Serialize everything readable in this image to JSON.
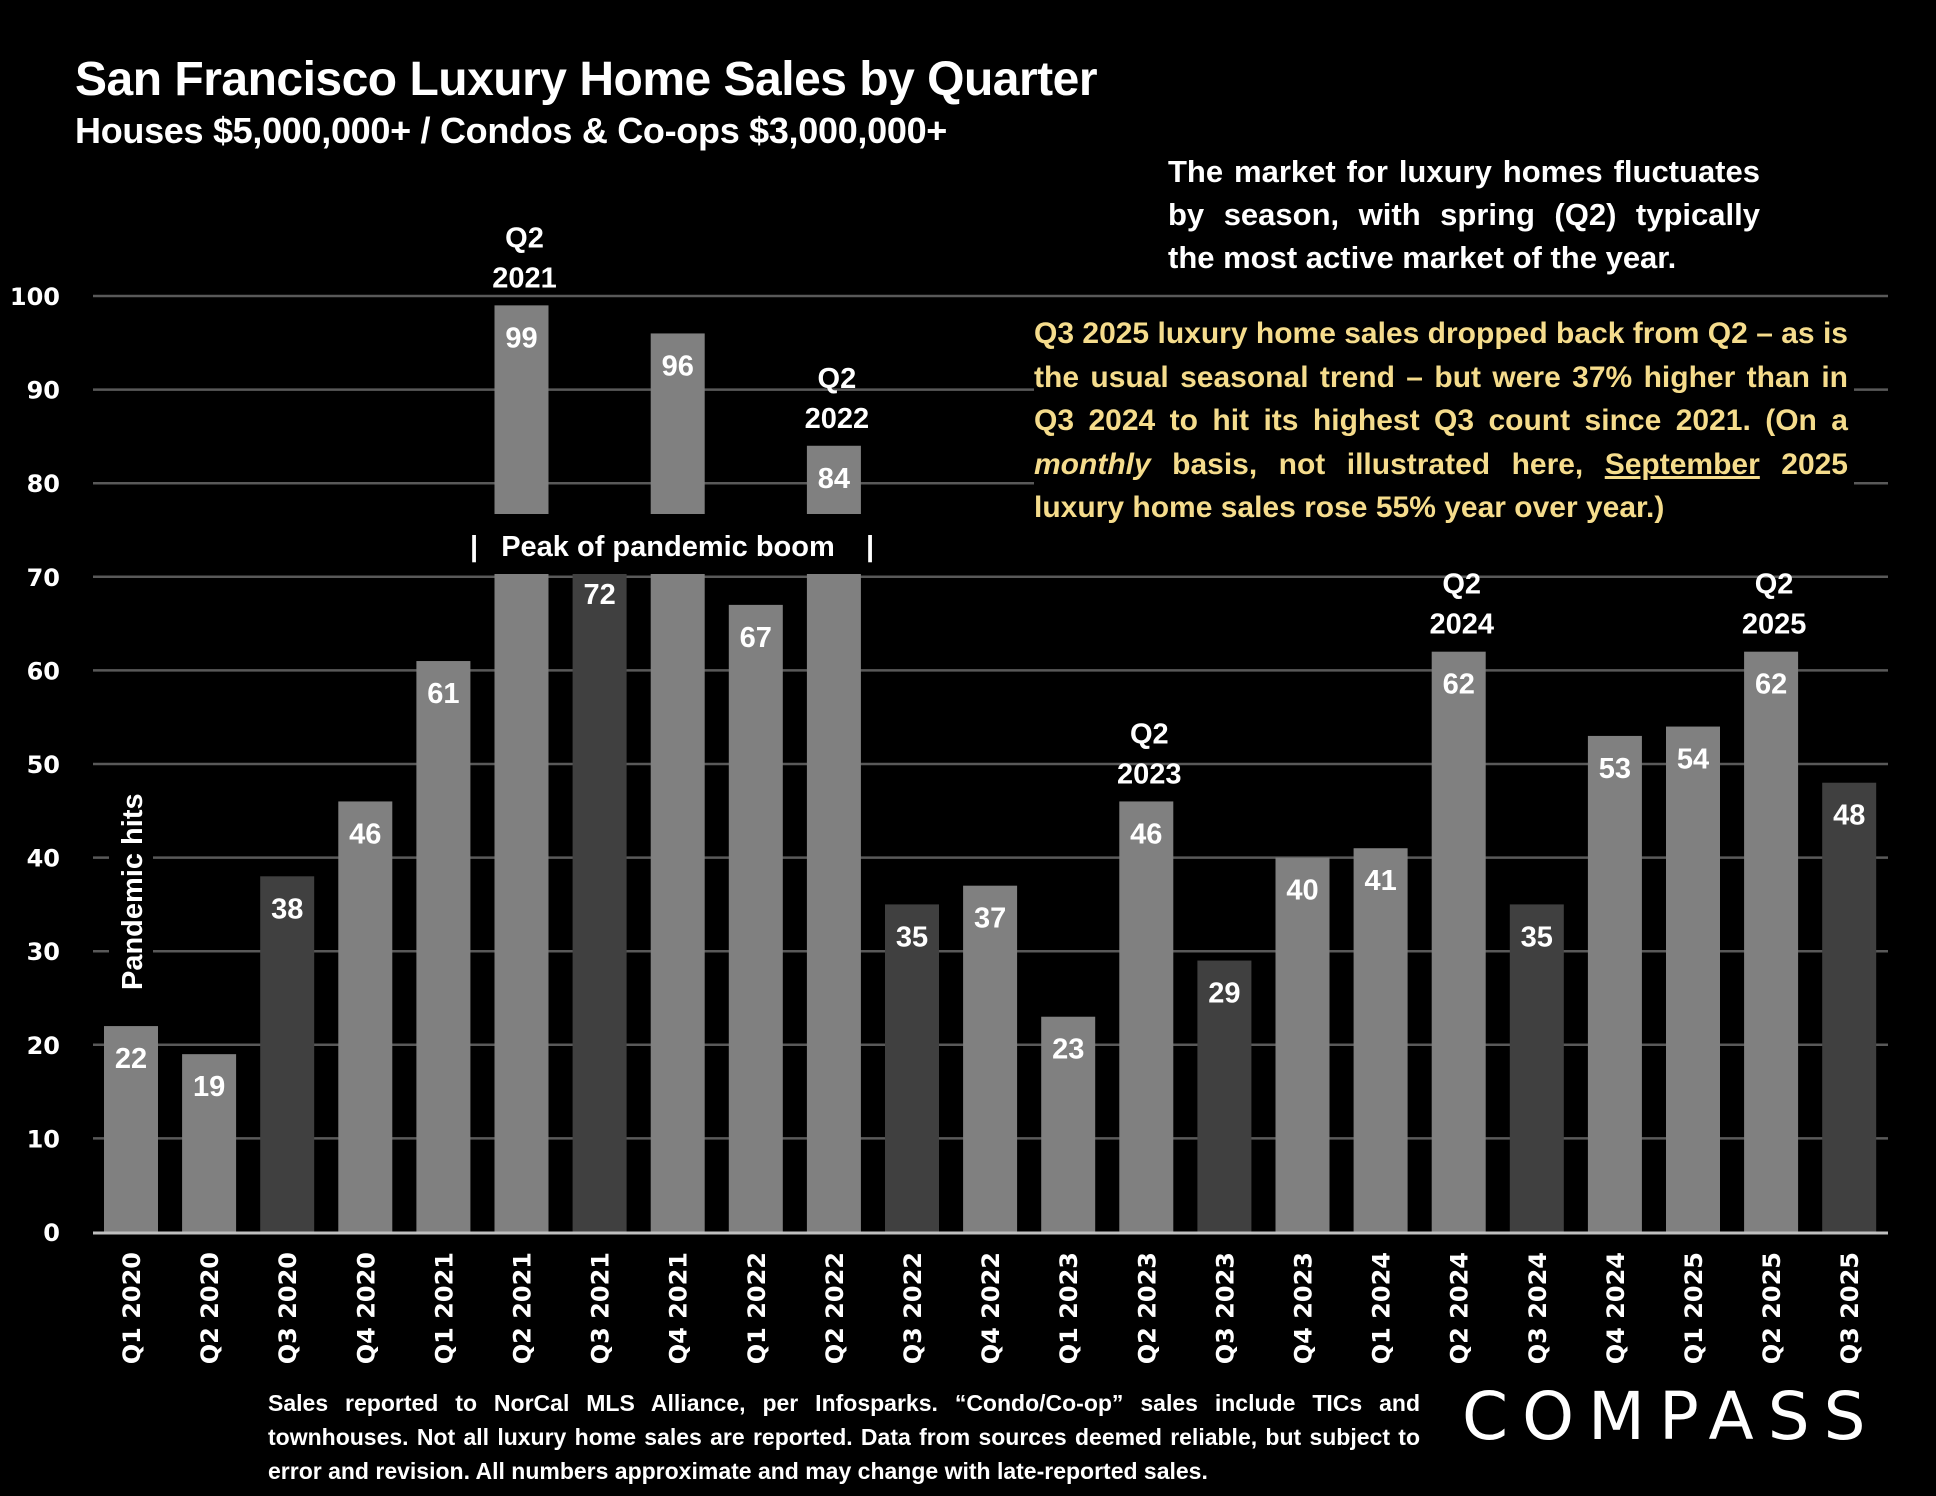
{
  "header": {
    "title": "San Francisco Luxury Home Sales by Quarter",
    "subtitle": "Houses $5,000,000+ / Condos & Co-ops $3,000,000+"
  },
  "notes": {
    "seasonal": "The market for luxury homes fluctuates by season, with spring (Q2) typically the most active market of the year.",
    "highlight_parts": [
      {
        "text": "Q3 2025 luxury home sales dropped back from Q2 – as is the usual seasonal trend – but were 37% higher than in Q3 2024 to hit its highest Q3 count since 2021. (On a ",
        "style": "normal"
      },
      {
        "text": "monthly",
        "style": "italic"
      },
      {
        "text": " basis, not illustrated here, ",
        "style": "normal"
      },
      {
        "text": "September",
        "style": "underline"
      },
      {
        "text": " 2025 luxury home sales rose 55% year over year.)",
        "style": "normal"
      }
    ]
  },
  "footnote": "Sales reported to NorCal MLS Alliance, per  Infosparks. “Condo/Co-op” sales include TICs and townhouses. Not all luxury home sales are reported. Data from sources deemed reliable, but subject to error and revision. All numbers approximate and may change with late-reported sales.",
  "logo": "COMPASS",
  "colors": {
    "background": "#000000",
    "bar_default": "#808080",
    "bar_q3": "#404040",
    "gridline": "#595959",
    "axis": "#bfbfbf",
    "highlight_text": "#F5DC8C",
    "text": "#ffffff"
  },
  "chart_data": {
    "type": "bar",
    "title": "San Francisco Luxury Home Sales by Quarter",
    "subtitle": "Houses $5,000,000+ / Condos & Co-ops $3,000,000+",
    "xlabel": "",
    "ylabel": "",
    "ylim": [
      0,
      100
    ],
    "yticks": [
      0,
      10,
      20,
      30,
      40,
      50,
      60,
      70,
      80,
      90,
      100
    ],
    "grid": true,
    "legend": "none",
    "categories": [
      "Q1 2020",
      "Q2 2020",
      "Q3 2020",
      "Q4 2020",
      "Q1 2021",
      "Q2 2021",
      "Q3 2021",
      "Q4 2021",
      "Q1 2022",
      "Q2 2022",
      "Q3 2022",
      "Q4 2022",
      "Q1 2023",
      "Q2 2023",
      "Q3 2023",
      "Q4 2023",
      "Q1 2024",
      "Q2 2024",
      "Q3 2024",
      "Q4 2024",
      "Q1 2025",
      "Q2 2025",
      "Q3 2025"
    ],
    "values": [
      22,
      19,
      38,
      46,
      61,
      99,
      72,
      96,
      67,
      84,
      35,
      37,
      23,
      46,
      29,
      40,
      41,
      62,
      35,
      53,
      54,
      62,
      48
    ],
    "highlighted_dark": [
      "Q3 2020",
      "Q3 2021",
      "Q3 2022",
      "Q3 2023",
      "Q3 2024",
      "Q3 2025"
    ],
    "axis_break": {
      "label": "Peak of pandemic boom",
      "from_category": "Q2 2021",
      "to_category": "Q2 2022"
    },
    "annotations": [
      {
        "category": "Q1 2020",
        "text": "Pandemic hits",
        "orientation": "vertical"
      },
      {
        "category": "Q2 2021",
        "lines": [
          "Q2",
          "2021"
        ]
      },
      {
        "category": "Q2 2022",
        "lines": [
          "Q2",
          "2022"
        ]
      },
      {
        "category": "Q2 2023",
        "lines": [
          "Q2",
          "2023"
        ]
      },
      {
        "category": "Q2 2024",
        "lines": [
          "Q2",
          "2024"
        ]
      },
      {
        "category": "Q2 2025",
        "lines": [
          "Q2",
          "2025"
        ]
      }
    ]
  }
}
